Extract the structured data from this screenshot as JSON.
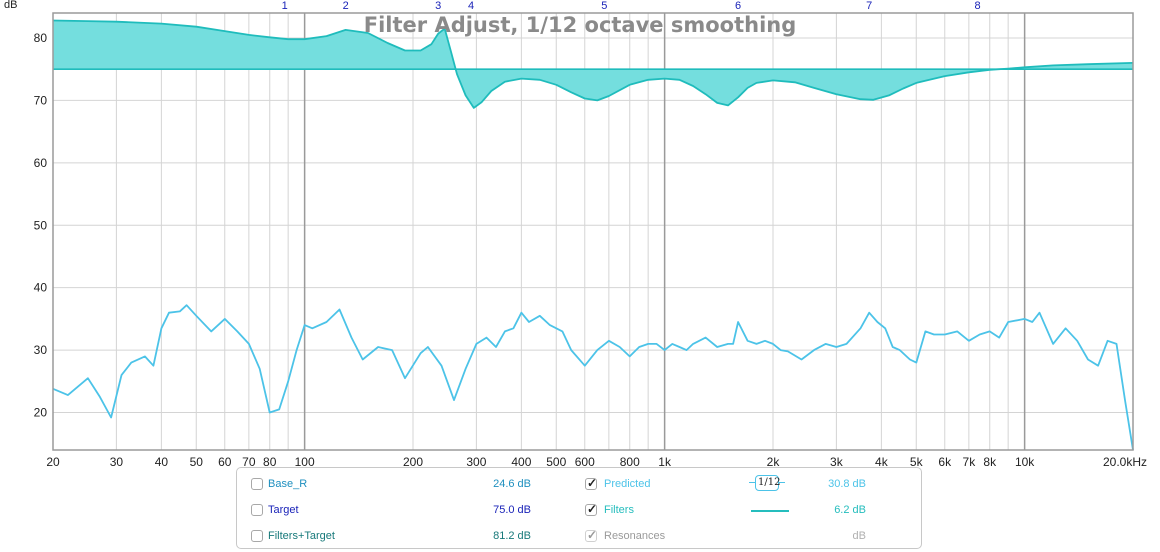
{
  "chart_data": {
    "type": "line",
    "title": "Filter Adjust, 1/12 octave smoothing",
    "ylabel": "dB",
    "xscale": "log",
    "xlim": [
      20,
      20000
    ],
    "ylim": [
      14,
      84
    ],
    "y_ticks": [
      20,
      30,
      40,
      50,
      60,
      70,
      80
    ],
    "x_ticks": [
      {
        "v": 20,
        "label": "20",
        "major": false
      },
      {
        "v": 30,
        "label": "30",
        "major": false
      },
      {
        "v": 40,
        "label": "40",
        "major": false
      },
      {
        "v": 50,
        "label": "50",
        "major": false
      },
      {
        "v": 60,
        "label": "60",
        "major": false
      },
      {
        "v": 70,
        "label": "70",
        "major": false
      },
      {
        "v": 80,
        "label": "80",
        "major": false
      },
      {
        "v": 90,
        "label": "",
        "major": false
      },
      {
        "v": 100,
        "label": "100",
        "major": true
      },
      {
        "v": 200,
        "label": "200",
        "major": false
      },
      {
        "v": 300,
        "label": "300",
        "major": false
      },
      {
        "v": 400,
        "label": "400",
        "major": false
      },
      {
        "v": 500,
        "label": "500",
        "major": false
      },
      {
        "v": 600,
        "label": "600",
        "major": false
      },
      {
        "v": 700,
        "label": "",
        "major": false
      },
      {
        "v": 800,
        "label": "800",
        "major": false
      },
      {
        "v": 900,
        "label": "",
        "major": false
      },
      {
        "v": 1000,
        "label": "1k",
        "major": true
      },
      {
        "v": 2000,
        "label": "2k",
        "major": false
      },
      {
        "v": 3000,
        "label": "3k",
        "major": false
      },
      {
        "v": 4000,
        "label": "4k",
        "major": false
      },
      {
        "v": 5000,
        "label": "5k",
        "major": false
      },
      {
        "v": 6000,
        "label": "6k",
        "major": false
      },
      {
        "v": 7000,
        "label": "7k",
        "major": false
      },
      {
        "v": 8000,
        "label": "8k",
        "major": false
      },
      {
        "v": 9000,
        "label": "",
        "major": false
      },
      {
        "v": 10000,
        "label": "10k",
        "major": true
      },
      {
        "v": 20000,
        "label": "20.0kHz",
        "major": false
      }
    ],
    "filter_markers": [
      {
        "label": "1",
        "x": 88
      },
      {
        "label": "2",
        "x": 130
      },
      {
        "label": "3",
        "x": 235
      },
      {
        "label": "4",
        "x": 290
      },
      {
        "label": "5",
        "x": 680
      },
      {
        "label": "6",
        "x": 1600
      },
      {
        "label": "7",
        "x": 3700
      },
      {
        "label": "8",
        "x": 7400
      }
    ],
    "filters_baseline": 75.0,
    "series": [
      {
        "name": "Filters+Target",
        "x": [
          20,
          25,
          30,
          40,
          50,
          60,
          70,
          80,
          90,
          100,
          115,
          130,
          150,
          170,
          190,
          210,
          225,
          235,
          245,
          255,
          265,
          280,
          295,
          310,
          330,
          360,
          400,
          450,
          500,
          550,
          600,
          650,
          700,
          800,
          900,
          1000,
          1100,
          1200,
          1300,
          1400,
          1500,
          1600,
          1700,
          1800,
          2000,
          2300,
          2600,
          3000,
          3500,
          3800,
          4200,
          4600,
          5000,
          6000,
          7000,
          8000,
          9000,
          10000,
          12000,
          15000,
          20000
        ],
        "y": [
          82.8,
          82.7,
          82.6,
          82.3,
          81.8,
          81.1,
          80.5,
          80.1,
          79.8,
          79.8,
          80.3,
          81.3,
          80.8,
          79.2,
          78.0,
          78.0,
          79.0,
          80.7,
          81.5,
          77.8,
          74.2,
          70.8,
          68.8,
          69.7,
          71.5,
          73.0,
          73.5,
          73.3,
          72.5,
          71.3,
          70.3,
          70.0,
          70.7,
          72.5,
          73.3,
          73.5,
          73.3,
          72.3,
          71.0,
          69.6,
          69.2,
          70.5,
          72.0,
          72.8,
          73.2,
          72.9,
          72.0,
          71.0,
          70.2,
          70.1,
          70.8,
          71.9,
          72.8,
          73.9,
          74.5,
          74.9,
          75.1,
          75.3,
          75.6,
          75.8,
          76.0
        ]
      },
      {
        "name": "Predicted",
        "x": [
          20,
          22,
          25,
          27,
          29,
          31,
          33,
          36,
          38,
          40,
          42,
          45,
          47,
          50,
          55,
          60,
          65,
          70,
          75,
          80,
          85,
          90,
          95,
          100,
          105,
          115,
          125,
          135,
          145,
          160,
          175,
          190,
          210,
          220,
          240,
          260,
          280,
          300,
          320,
          340,
          360,
          380,
          400,
          420,
          450,
          480,
          520,
          550,
          600,
          650,
          700,
          750,
          800,
          850,
          900,
          950,
          1000,
          1050,
          1100,
          1150,
          1200,
          1300,
          1400,
          1500,
          1550,
          1600,
          1700,
          1800,
          1900,
          2000,
          2100,
          2200,
          2400,
          2600,
          2800,
          3000,
          3200,
          3500,
          3700,
          3900,
          4100,
          4300,
          4500,
          4800,
          5000,
          5300,
          5600,
          6000,
          6500,
          7000,
          7500,
          8000,
          8500,
          9000,
          10000,
          10500,
          11000,
          12000,
          13000,
          14000,
          15000,
          16000,
          17000,
          18000,
          19000,
          20000
        ],
        "y": [
          23.8,
          22.8,
          25.5,
          22.5,
          19.2,
          26.0,
          28.0,
          29.0,
          27.5,
          33.5,
          36.0,
          36.2,
          37.2,
          35.5,
          33.0,
          35.0,
          33.0,
          31.0,
          27.0,
          20.0,
          20.5,
          25.0,
          30.0,
          34.0,
          33.5,
          34.5,
          36.5,
          32.0,
          28.5,
          30.5,
          30.0,
          25.5,
          29.5,
          30.5,
          27.5,
          22.0,
          27.0,
          31.0,
          32.0,
          30.5,
          33.0,
          33.5,
          36.0,
          34.5,
          35.5,
          34.0,
          33.0,
          30.0,
          27.5,
          30.0,
          31.5,
          30.5,
          29.0,
          30.5,
          31.0,
          31.0,
          30.0,
          31.0,
          30.5,
          30.0,
          31.0,
          32.0,
          30.5,
          31.0,
          31.0,
          34.5,
          31.5,
          31.0,
          31.5,
          31.0,
          30.0,
          29.8,
          28.5,
          30.0,
          31.0,
          30.5,
          31.0,
          33.5,
          36.0,
          34.5,
          33.5,
          30.5,
          30.0,
          28.5,
          28.0,
          33.0,
          32.5,
          32.5,
          33.0,
          31.5,
          32.5,
          33.0,
          32.0,
          34.5,
          35.0,
          34.5,
          36.0,
          31.0,
          33.5,
          31.5,
          28.5,
          27.5,
          31.5,
          31.0,
          22.0,
          14.0
        ]
      }
    ],
    "legend": {
      "rows": [
        {
          "left_label": "Base_R",
          "left_checked": false,
          "left_value": "24.6 dB",
          "right_label": "Predicted",
          "right_checked": true,
          "right_value": "30.8 dB",
          "left_color": "#1e8fbf",
          "right_color": "#4cc3e8"
        },
        {
          "left_label": "Target",
          "left_checked": false,
          "left_value": "75.0 dB",
          "right_label": "Filters",
          "right_checked": true,
          "right_value": "6.2 dB",
          "left_color": "#1a23b8",
          "right_color": "#25bdbd"
        },
        {
          "left_label": "Filters+Target",
          "left_checked": false,
          "left_value": "81.2 dB",
          "right_label": "Resonances",
          "right_checked": true,
          "right_value": "dB",
          "left_color": "#17797a",
          "right_color": "#9a9a9a"
        }
      ],
      "smoothing_label": "1/12"
    },
    "colors": {
      "filters_fill": "#74dede",
      "filters_line": "#1fbcbc",
      "predicted_line": "#4cc3e8",
      "grid_minor": "#d4d4d4",
      "grid_major": "#9a9a9a",
      "title": "#8a8a8a",
      "marker": "#1a23b8"
    }
  }
}
